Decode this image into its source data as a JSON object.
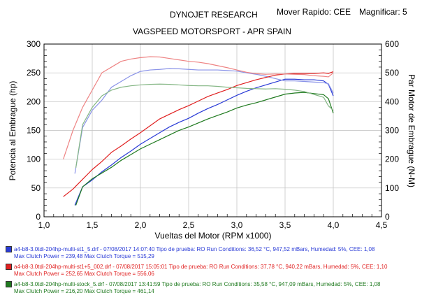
{
  "header": {
    "lab": "DYNOJET RESEARCH",
    "shop": "VAGSPEED MOTORSPORT - APR SPAIN",
    "mode": "Mover Rapido: CEE",
    "magnifier": "Magnificar: 5"
  },
  "chart_data": {
    "type": "line",
    "xlabel": "Vueltas del Motor (RPM x1000)",
    "ylabel_left": "Potencia al Embrague (hp)",
    "ylabel_right": "Par Motor de Embrague (N-M)",
    "xlim": [
      1.0,
      4.5
    ],
    "ylim_left": [
      0,
      300
    ],
    "ylim_right": [
      0,
      600
    ],
    "x_ticks": [
      "1,0",
      "1,5",
      "2,0",
      "2,5",
      "3,0",
      "3,5",
      "4,0",
      "4,5"
    ],
    "y_ticks_left": [
      "0",
      "50",
      "100",
      "150",
      "200",
      "250",
      "300"
    ],
    "y_ticks_right": [
      "0",
      "100",
      "200",
      "300",
      "400",
      "500",
      "600"
    ],
    "grid": true,
    "series": [
      {
        "color": "#2a3bd6",
        "power_hp": {
          "x": [
            1.32,
            1.4,
            1.5,
            1.6,
            1.7,
            1.8,
            1.9,
            2.0,
            2.1,
            2.2,
            2.3,
            2.4,
            2.5,
            2.6,
            2.7,
            2.8,
            2.9,
            3.0,
            3.1,
            3.2,
            3.3,
            3.4,
            3.5,
            3.6,
            3.7,
            3.8,
            3.9,
            3.95,
            4.0
          ],
          "y": [
            20,
            52,
            64,
            78,
            90,
            103,
            114,
            126,
            136,
            146,
            156,
            164,
            171,
            180,
            188,
            195,
            203,
            211,
            218,
            224,
            229,
            234,
            239,
            239,
            238,
            238,
            236,
            230,
            210
          ]
        },
        "torque_nm": {
          "x": [
            1.32,
            1.4,
            1.5,
            1.6,
            1.7,
            1.8,
            1.9,
            2.0,
            2.1,
            2.2,
            2.3,
            2.4,
            2.5,
            2.6,
            2.7,
            2.8,
            2.9,
            3.0,
            3.1,
            3.2,
            3.3,
            3.4,
            3.5,
            3.6,
            3.7,
            3.8,
            3.9,
            3.95,
            4.0
          ],
          "y": [
            150,
            310,
            370,
            405,
            450,
            470,
            490,
            505,
            510,
            512,
            515,
            514,
            512,
            510,
            510,
            510,
            508,
            506,
            500,
            495,
            488,
            480,
            472,
            472,
            470,
            468,
            466,
            462,
            430
          ]
        }
      },
      {
        "color": "#e02020",
        "power_hp": {
          "x": [
            1.2,
            1.3,
            1.4,
            1.5,
            1.6,
            1.7,
            1.8,
            1.9,
            2.0,
            2.1,
            2.2,
            2.3,
            2.4,
            2.5,
            2.6,
            2.7,
            2.8,
            2.9,
            3.0,
            3.1,
            3.2,
            3.3,
            3.4,
            3.5,
            3.6,
            3.7,
            3.8,
            3.9,
            3.95,
            4.0
          ],
          "y": [
            35,
            48,
            65,
            82,
            96,
            112,
            123,
            135,
            146,
            158,
            170,
            178,
            186,
            193,
            201,
            209,
            215,
            221,
            228,
            233,
            238,
            242,
            246,
            248,
            249,
            249,
            249,
            250,
            249,
            252
          ]
        },
        "torque_nm": {
          "x": [
            1.2,
            1.3,
            1.4,
            1.5,
            1.6,
            1.7,
            1.8,
            1.9,
            2.0,
            2.1,
            2.2,
            2.3,
            2.4,
            2.5,
            2.6,
            2.7,
            2.8,
            2.9,
            3.0,
            3.1,
            3.2,
            3.3,
            3.4,
            3.5,
            3.6,
            3.7,
            3.8,
            3.9,
            3.95,
            4.0
          ],
          "y": [
            200,
            300,
            380,
            440,
            500,
            520,
            540,
            548,
            553,
            556,
            555,
            550,
            545,
            540,
            537,
            532,
            525,
            518,
            510,
            502,
            497,
            495,
            496,
            496,
            495,
            494,
            490,
            488,
            486,
            500
          ]
        }
      },
      {
        "color": "#1f7a1f",
        "power_hp": {
          "x": [
            1.33,
            1.4,
            1.5,
            1.6,
            1.7,
            1.8,
            1.9,
            2.0,
            2.1,
            2.2,
            2.3,
            2.4,
            2.5,
            2.6,
            2.7,
            2.8,
            2.9,
            3.0,
            3.1,
            3.2,
            3.3,
            3.4,
            3.5,
            3.6,
            3.7,
            3.8,
            3.9,
            3.95,
            4.0
          ],
          "y": [
            20,
            52,
            66,
            76,
            86,
            98,
            108,
            118,
            126,
            134,
            142,
            150,
            156,
            163,
            170,
            176,
            182,
            189,
            194,
            198,
            203,
            208,
            213,
            215,
            216,
            214,
            212,
            205,
            180
          ]
        },
        "torque_nm": {
          "x": [
            1.33,
            1.4,
            1.5,
            1.6,
            1.7,
            1.8,
            1.9,
            2.0,
            2.1,
            2.2,
            2.3,
            2.4,
            2.5,
            2.6,
            2.7,
            2.8,
            2.9,
            3.0,
            3.1,
            3.2,
            3.3,
            3.4,
            3.5,
            3.6,
            3.7,
            3.8,
            3.9,
            3.95,
            4.0
          ],
          "y": [
            170,
            320,
            380,
            420,
            440,
            450,
            455,
            458,
            460,
            461,
            460,
            458,
            456,
            455,
            455,
            453,
            450,
            448,
            446,
            445,
            444,
            445,
            443,
            440,
            435,
            425,
            415,
            385,
            370
          ]
        }
      }
    ]
  },
  "legend": [
    {
      "color": "#2a3bd6",
      "line1": "a4-b8-3.0tdi-204hp-multi-st1_5.drf - 07/08/2017 14:07:40  Tipo de prueba: RO  Run Conditions: 36,52 °C, 947,52 mBars,  Humedad: 5%, CEE: 1,08",
      "line2": "Max Clutch Power = 239,48    Max Clutch Torque = 515,29"
    },
    {
      "color": "#e02020",
      "line1": "a4-b8-3.0tdi-204hp-multi-st1+5_002.drf - 07/08/2017 15:05:01  Tipo de prueba: RO  Run Conditions: 37,78 °C, 940,22 mBars,  Humedad: 5%, CEE: 1,10",
      "line2": "Max Clutch Power = 252,65    Max Clutch Torque = 556,06"
    },
    {
      "color": "#1f7a1f",
      "line1": "a4-b8-3.0tdi-204hp-multi-stock_5.drf - 07/08/2017 13:41:59  Tipo de prueba: RO  Run Conditions: 35,58 °C, 947,09 mBars,  Humedad: 5%, CEE: 1,08",
      "line2": "Max Clutch Power = 216,20    Max Clutch Torque = 461,14"
    }
  ]
}
